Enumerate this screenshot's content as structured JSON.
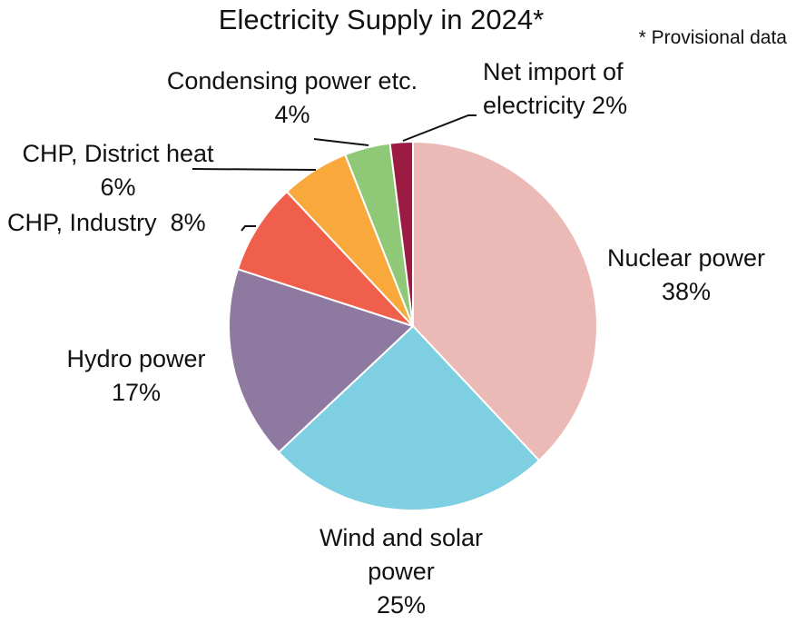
{
  "chart_data": {
    "type": "pie",
    "title": "Electricity Supply in 2024*",
    "note": "* Provisional data",
    "slices": [
      {
        "name": "Nuclear power",
        "value": 38,
        "value_label": "38%",
        "color": "#ebbab6"
      },
      {
        "name": "Wind and solar power",
        "value": 25,
        "value_label": "25%",
        "color": "#7ecfe1"
      },
      {
        "name": "Hydro power",
        "value": 17,
        "value_label": "17%",
        "color": "#8e79a0"
      },
      {
        "name": "CHP, Industry",
        "value": 8,
        "value_label": "8%",
        "color": "#f05e4c"
      },
      {
        "name": "CHP, District heat",
        "value": 6,
        "value_label": "6%",
        "color": "#f9a93c"
      },
      {
        "name": "Condensing power etc.",
        "value": 4,
        "value_label": "4%",
        "color": "#8fc977"
      },
      {
        "name": "Net import of electricity",
        "value": 2,
        "value_label": "2%",
        "color": "#9b1b42"
      }
    ]
  }
}
